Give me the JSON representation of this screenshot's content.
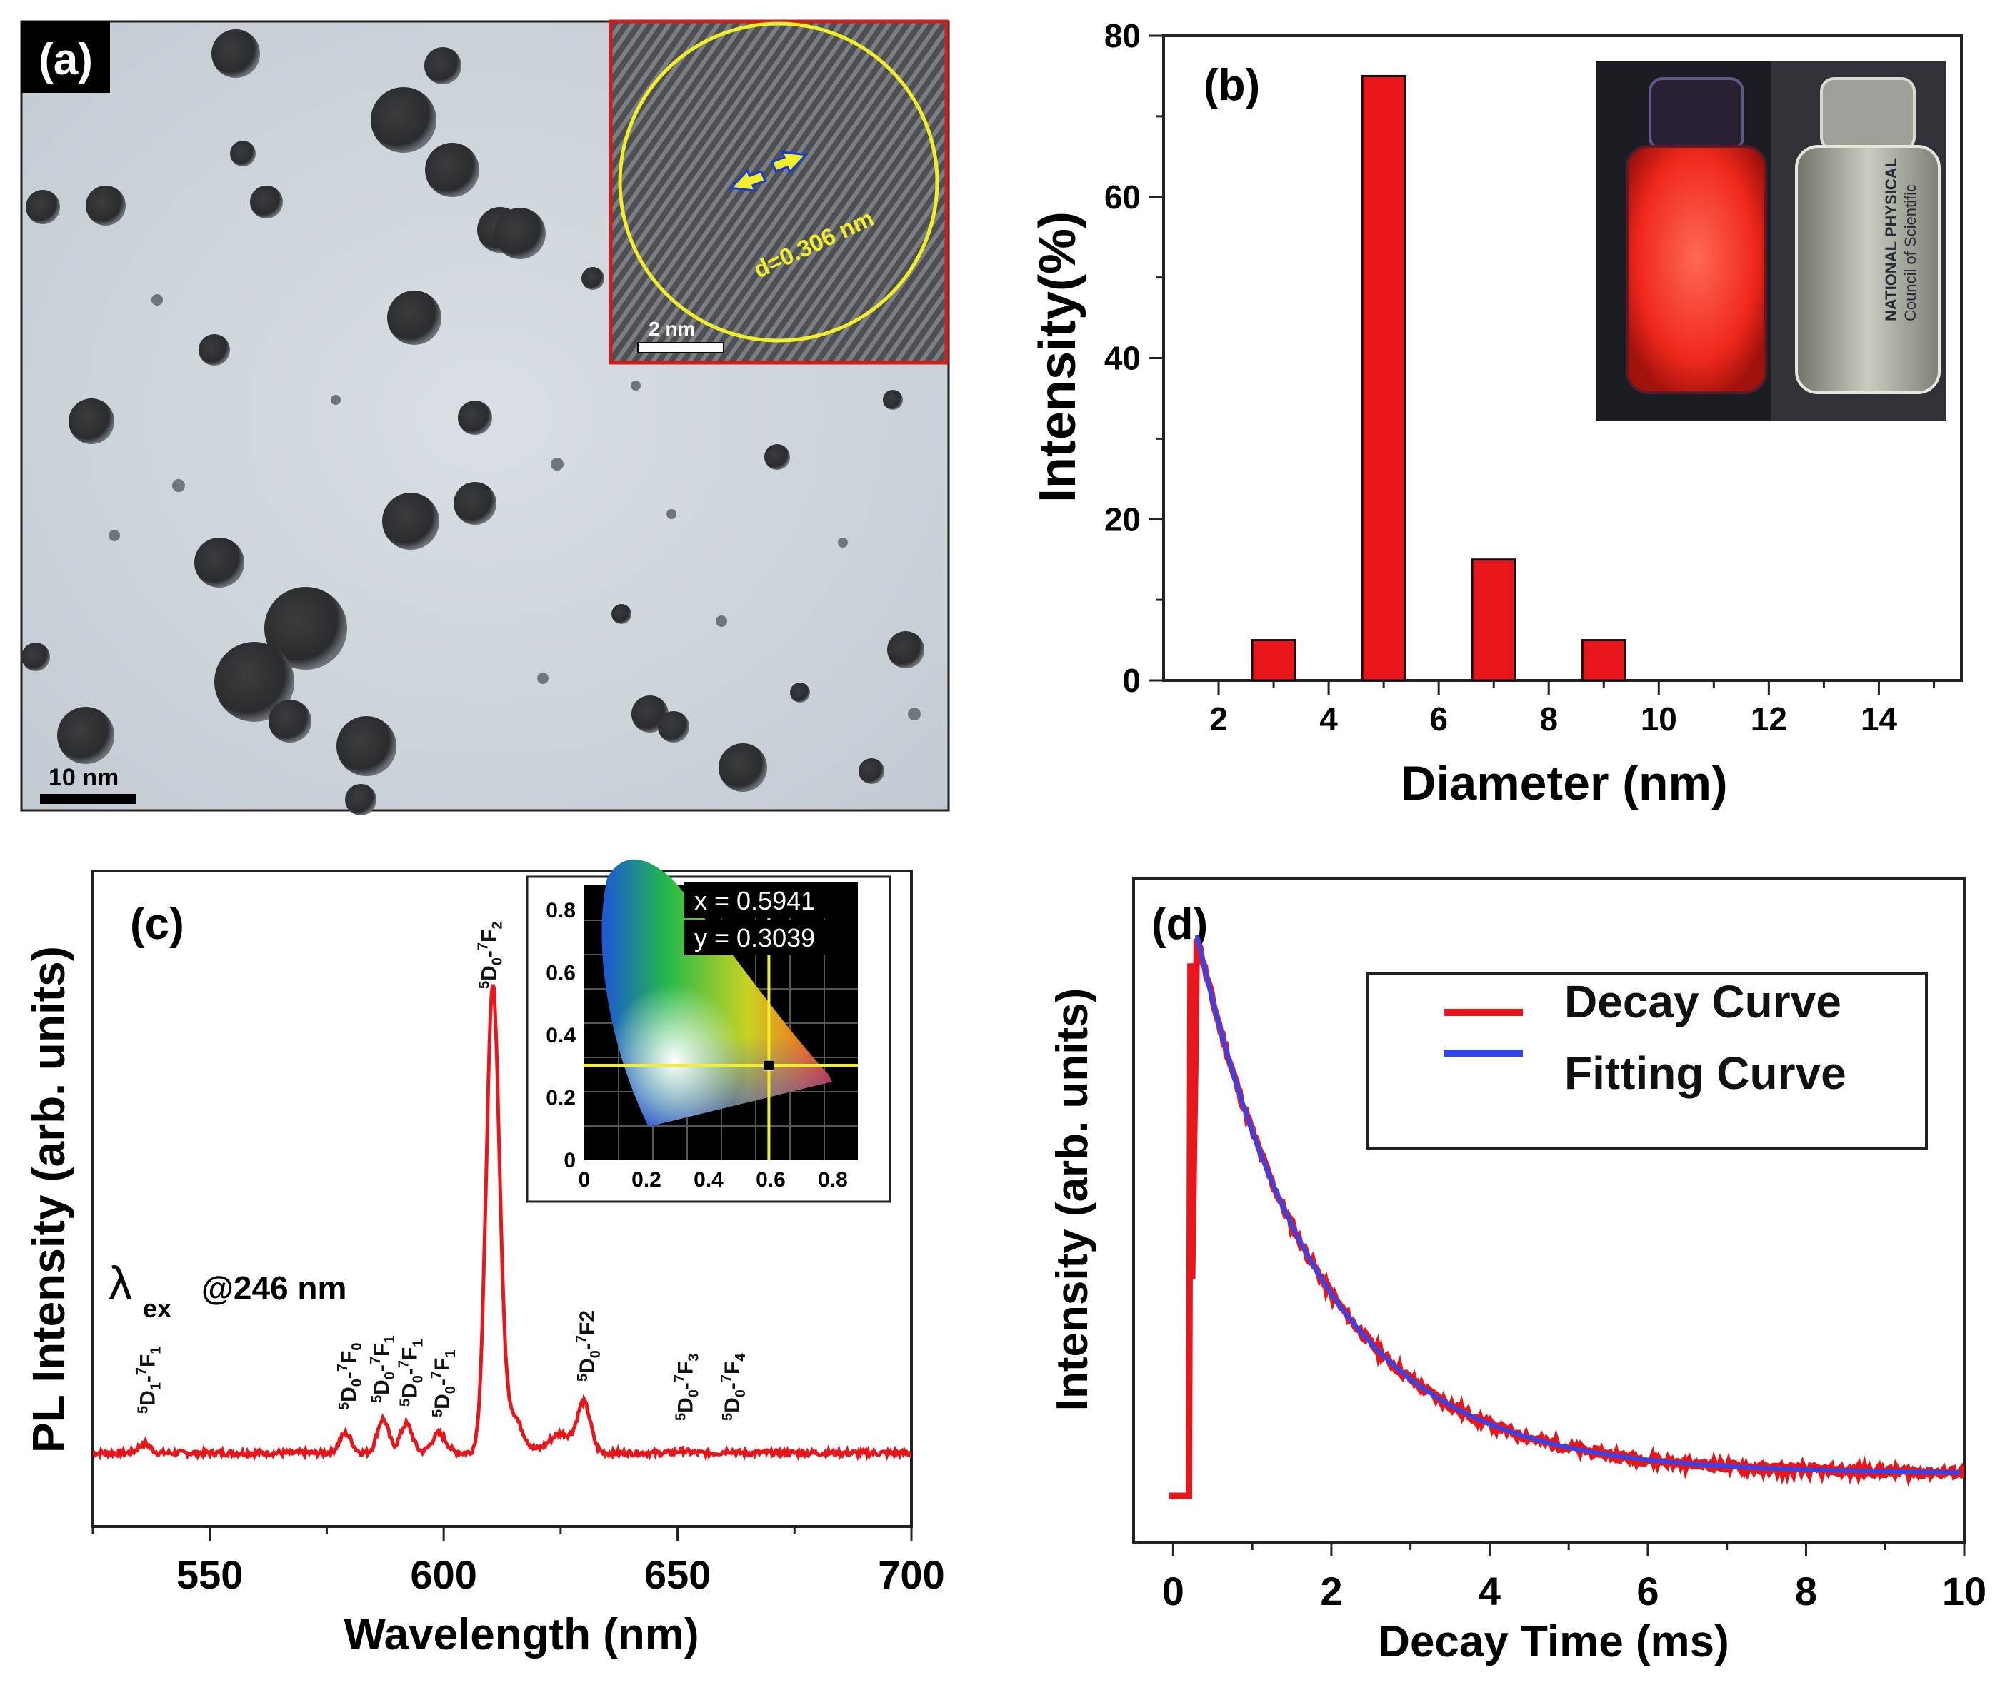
{
  "colors": {
    "red": "#e8161b",
    "blue": "#3344ee",
    "yellow": "#f1ee2a",
    "black": "#000000"
  },
  "panel_a": {
    "label": "(a)",
    "scalebar": "10 nm",
    "inset_scalebar": "2 nm",
    "lattice_spacing": "d=0.306 nm"
  },
  "chart_data": [
    {
      "panel": "(b)",
      "type": "bar",
      "xlabel": "Diameter (nm)",
      "ylabel": "Intensity(%)",
      "xlim": [
        1,
        15.5
      ],
      "ylim": [
        0,
        80
      ],
      "xticks": [
        2,
        4,
        6,
        8,
        10,
        12,
        14
      ],
      "yticks": [
        0,
        20,
        40,
        60,
        80
      ],
      "x": [
        3,
        5,
        7,
        9
      ],
      "values": [
        5,
        75,
        15,
        5
      ],
      "inset": "photo of two vials: red emission under UV and clear solution under daylight; label fragments on right vial",
      "vial_label": [
        "NATIONAL PHYSICAL",
        "Council of Scientific"
      ]
    },
    {
      "panel": "(c)",
      "type": "line",
      "xlabel": "Wavelength (nm)",
      "ylabel": "PL Intensity (arb. units)",
      "xlim": [
        525,
        700
      ],
      "xticks": [
        550,
        600,
        650,
        700
      ],
      "annotation": "@246 nm",
      "lambda_symbol": "λ",
      "lambda_sub": "ex",
      "baseline": 0.05,
      "peaks": [
        {
          "x": 536,
          "y": 0.07
        },
        {
          "x": 579,
          "y": 0.09
        },
        {
          "x": 587,
          "y": 0.12
        },
        {
          "x": 592,
          "y": 0.11
        },
        {
          "x": 599,
          "y": 0.09
        },
        {
          "x": 610.5,
          "y": 1.0
        },
        {
          "x": 630,
          "y": 0.15
        },
        {
          "x": 651,
          "y": 0.055
        },
        {
          "x": 661,
          "y": 0.055
        }
      ],
      "transitions": [
        {
          "main": "D",
          "main_sub": "1",
          "sup2": "7",
          "second": "F",
          "second_sub": "1",
          "wl": 537
        },
        {
          "main": "D",
          "main_sub": "0",
          "sup2": "7",
          "second": "F",
          "second_sub": "0",
          "wl": 580
        },
        {
          "main": "D",
          "main_sub": "0",
          "sup2": "7",
          "second": "F",
          "second_sub": "1",
          "wl": 587
        },
        {
          "main": "D",
          "main_sub": "0",
          "sup2": "7",
          "second": "F",
          "second_sub": "1",
          "wl": 593
        },
        {
          "main": "D",
          "main_sub": "0",
          "sup2": "7",
          "second": "F",
          "second_sub": "1",
          "wl": 600
        },
        {
          "main": "D",
          "main_sub": "0",
          "sup2": "7",
          "second": "F",
          "second_sub": "2",
          "wl": 610
        },
        {
          "main": "D",
          "main_sub": "0",
          "sup2": "7",
          "second": "F2",
          "second_sub": "",
          "wl": 631
        },
        {
          "main": "D",
          "main_sub": "0",
          "sup2": "7",
          "second": "F",
          "second_sub": "3",
          "wl": 652
        },
        {
          "main": "D",
          "main_sub": "0",
          "sup2": "7",
          "second": "F",
          "second_sub": "4",
          "wl": 662
        }
      ],
      "transition_sup": "5",
      "cie_inset": {
        "x_text": "x = 0.5941",
        "y_text": "y = 0.3039",
        "point": [
          0.5941,
          0.3039
        ],
        "xticks": [
          "0",
          "0.2",
          "0.4",
          "0.6",
          "0.8"
        ],
        "yticks": [
          "0",
          "0.2",
          "0.4",
          "0.6",
          "0.8"
        ]
      }
    },
    {
      "panel": "(d)",
      "type": "line",
      "xlabel": "Decay Time (ms)",
      "ylabel": "Intensity (arb. units)",
      "xlim": [
        -0.5,
        10
      ],
      "xticks": [
        0,
        2,
        4,
        6,
        8,
        10
      ],
      "rise_time": 0.2,
      "peak_time": 0.3,
      "decay_constant": 1.55,
      "offset": 0.04,
      "legend": [
        "Decay Curve",
        "Fitting Curve"
      ],
      "series": [
        {
          "name": "Decay Curve",
          "color": "#e8161b"
        },
        {
          "name": "Fitting Curve",
          "color": "#3344ee"
        }
      ]
    }
  ]
}
